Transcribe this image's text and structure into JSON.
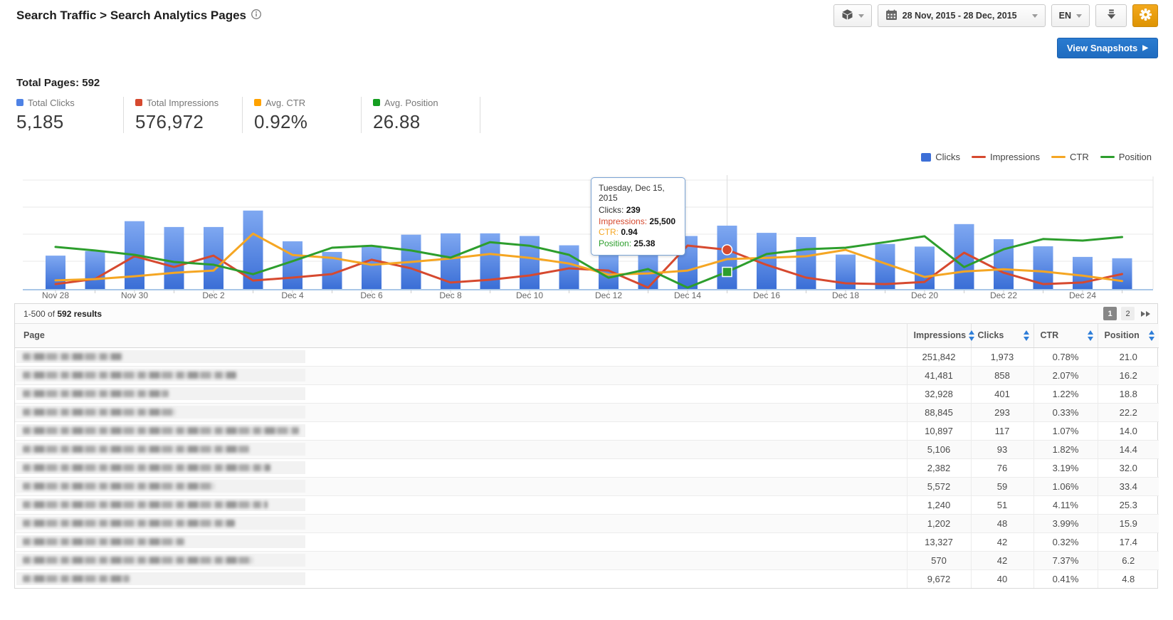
{
  "header": {
    "breadcrumb": "Search Traffic > Search Analytics Pages",
    "toolbar": {
      "product_picker_icon": "cube-icon",
      "date_range": "28 Nov, 2015 - 28 Dec, 2015",
      "language": "EN",
      "download_icon": "download-icon",
      "settings_icon": "gear-icon"
    },
    "view_snapshots": "View Snapshots"
  },
  "summary": {
    "total_pages": "Total Pages: 592",
    "stats": [
      {
        "label": "Total Clicks",
        "value": "5,185",
        "color": "#4e82e5"
      },
      {
        "label": "Total Impressions",
        "value": "576,972",
        "color": "#d6492f"
      },
      {
        "label": "Avg. CTR",
        "value": "0.92%",
        "color": "#ffa200"
      },
      {
        "label": "Avg. Position",
        "value": "26.88",
        "color": "#159e21"
      }
    ]
  },
  "chart_data": {
    "type": "bar+line",
    "x": [
      "Nov 28",
      "Nov 29",
      "Nov 30",
      "Dec 1",
      "Dec 2",
      "Dec 3",
      "Dec 4",
      "Dec 5",
      "Dec 6",
      "Dec 7",
      "Dec 8",
      "Dec 9",
      "Dec 10",
      "Dec 11",
      "Dec 12",
      "Dec 13",
      "Dec 14",
      "Dec 15",
      "Dec 16",
      "Dec 17",
      "Dec 18",
      "Dec 19",
      "Dec 20",
      "Dec 21",
      "Dec 22",
      "Dec 23",
      "Dec 24",
      "Dec 25"
    ],
    "tick_labels": [
      "Nov 28",
      "Nov 30",
      "Dec 2",
      "Dec 4",
      "Dec 6",
      "Dec 8",
      "Dec 10",
      "Dec 12",
      "Dec 14",
      "Dec 16",
      "Dec 18",
      "Dec 20",
      "Dec 22",
      "Dec 24"
    ],
    "legend": [
      {
        "label": "Clicks",
        "color": "#3d6fd7",
        "shape": "square"
      },
      {
        "label": "Impressions",
        "color": "#d6492f",
        "shape": "line"
      },
      {
        "label": "CTR",
        "color": "#f5a623",
        "shape": "line"
      },
      {
        "label": "Position",
        "color": "#2d9e2d",
        "shape": "line"
      }
    ],
    "series": [
      {
        "name": "Clicks",
        "type": "bar",
        "color": "#3d6fd7",
        "values": [
          126,
          143,
          256,
          234,
          234,
          296,
          180,
          140,
          159,
          205,
          210,
          210,
          200,
          165,
          130,
          135,
          200,
          239,
          212,
          196,
          130,
          170,
          160,
          245,
          188,
          161,
          121,
          116
        ]
      },
      {
        "name": "Impressions",
        "type": "line",
        "color": "#d6492f",
        "values": [
          3200,
          6500,
          21300,
          14300,
          21700,
          5500,
          7400,
          9700,
          19000,
          13400,
          4200,
          6000,
          8800,
          13400,
          12000,
          900,
          28200,
          25500,
          15700,
          7400,
          3700,
          3200,
          4600,
          23600,
          10600,
          3200,
          4200,
          9700
        ]
      },
      {
        "name": "CTR",
        "type": "line",
        "color": "#f5a623",
        "values": [
          0.27,
          0.31,
          0.4,
          0.51,
          0.58,
          1.74,
          1.07,
          0.98,
          0.76,
          0.85,
          0.96,
          1.1,
          0.98,
          0.8,
          0.45,
          0.49,
          0.58,
          0.94,
          0.98,
          1.03,
          1.23,
          0.8,
          0.38,
          0.55,
          0.62,
          0.55,
          0.42,
          0.25
        ]
      },
      {
        "name": "Position",
        "type": "line",
        "color": "#2d9e2d",
        "values": [
          31.7,
          30.8,
          29.7,
          27.9,
          27.2,
          24.8,
          28.1,
          31.5,
          32.0,
          30.8,
          29.0,
          32.9,
          32.0,
          29.7,
          23.9,
          26.1,
          21.4,
          25.38,
          29.9,
          31.1,
          31.5,
          32.9,
          34.4,
          26.6,
          31.1,
          33.7,
          33.3,
          34.2
        ]
      }
    ],
    "highlight_index": 17
  },
  "tooltip": {
    "title": "Tuesday, Dec 15, 2015",
    "rows": [
      {
        "label": "Clicks",
        "value": "239",
        "label_color": "#333333"
      },
      {
        "label": "Impressions",
        "value": "25,500",
        "label_color": "#d6492f"
      },
      {
        "label": "CTR",
        "value": "0.94",
        "label_color": "#f5a623"
      },
      {
        "label": "Position",
        "value": "25.38",
        "label_color": "#2d9e2d"
      }
    ]
  },
  "table": {
    "results_prefix": "1-500 of ",
    "results_bold": "592 results",
    "pagination": {
      "current": "1",
      "other": "2",
      "next_icon": "fast-forward-icon"
    },
    "columns": [
      "Page",
      "Impressions",
      "Clicks",
      "CTR",
      "Position"
    ],
    "rows": [
      {
        "impressions": "251,842",
        "clicks": "1,973",
        "ctr": "0.78%",
        "position": "21.0",
        "redacted_width": 140
      },
      {
        "impressions": "41,481",
        "clicks": "858",
        "ctr": "2.07%",
        "position": "16.2",
        "redacted_width": 300
      },
      {
        "impressions": "32,928",
        "clicks": "401",
        "ctr": "1.22%",
        "position": "18.8",
        "redacted_width": 205
      },
      {
        "impressions": "88,845",
        "clicks": "293",
        "ctr": "0.33%",
        "position": "22.2",
        "redacted_width": 215
      },
      {
        "impressions": "10,897",
        "clicks": "117",
        "ctr": "1.07%",
        "position": "14.0",
        "redacted_width": 388
      },
      {
        "impressions": "5,106",
        "clicks": "93",
        "ctr": "1.82%",
        "position": "14.4",
        "redacted_width": 318
      },
      {
        "impressions": "2,382",
        "clicks": "76",
        "ctr": "3.19%",
        "position": "32.0",
        "redacted_width": 348
      },
      {
        "impressions": "5,572",
        "clicks": "59",
        "ctr": "1.06%",
        "position": "33.4",
        "redacted_width": 270
      },
      {
        "impressions": "1,240",
        "clicks": "51",
        "ctr": "4.11%",
        "position": "25.3",
        "redacted_width": 344
      },
      {
        "impressions": "1,202",
        "clicks": "48",
        "ctr": "3.99%",
        "position": "15.9",
        "redacted_width": 298
      },
      {
        "impressions": "13,327",
        "clicks": "42",
        "ctr": "0.32%",
        "position": "17.4",
        "redacted_width": 228
      },
      {
        "impressions": "570",
        "clicks": "42",
        "ctr": "7.37%",
        "position": "6.2",
        "redacted_width": 324
      },
      {
        "impressions": "9,672",
        "clicks": "40",
        "ctr": "0.41%",
        "position": "4.8",
        "redacted_width": 150
      }
    ]
  }
}
